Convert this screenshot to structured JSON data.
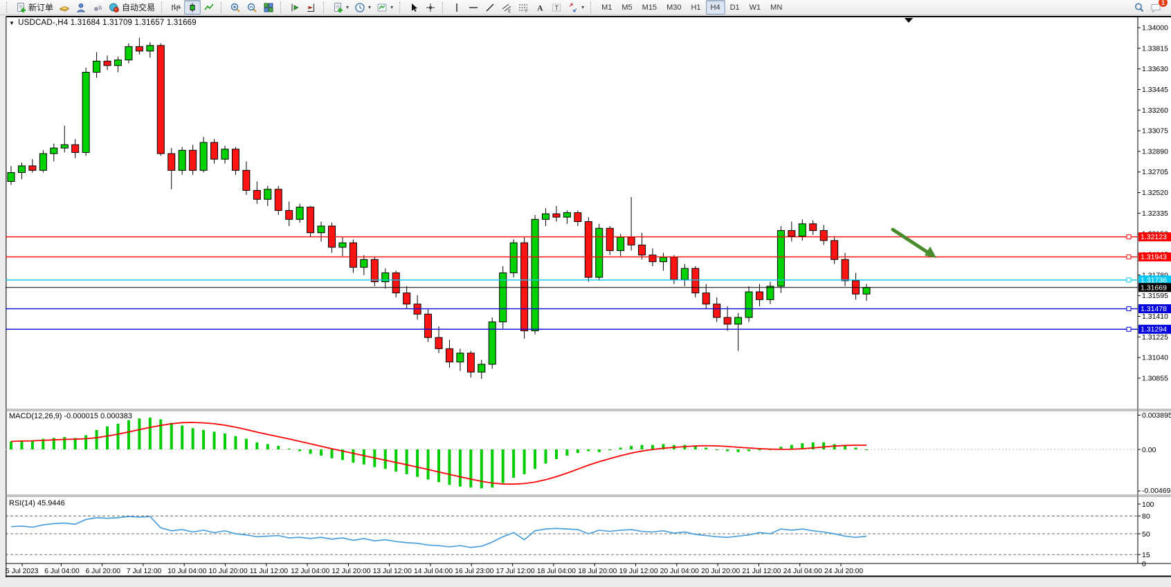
{
  "toolbar": {
    "items": [
      {
        "type": "sep"
      },
      {
        "name": "new-order-button",
        "icon": "doc-plus",
        "label": "新订单"
      },
      {
        "name": "market-watch-button",
        "icon": "book"
      },
      {
        "name": "navigator-button",
        "icon": "person"
      },
      {
        "name": "signals-button",
        "icon": "signal"
      },
      {
        "name": "autotrading-button",
        "icon": "auto",
        "label": "自动交易"
      },
      {
        "type": "sep"
      },
      {
        "name": "bar-chart-button",
        "icon": "bars"
      },
      {
        "name": "candle-chart-button",
        "icon": "candle",
        "pressed": true
      },
      {
        "name": "line-chart-button",
        "icon": "linechart"
      },
      {
        "type": "sep"
      },
      {
        "name": "zoom-in-button",
        "icon": "zoomin"
      },
      {
        "name": "zoom-out-button",
        "icon": "zoomout"
      },
      {
        "name": "tile-windows-button",
        "icon": "tile"
      },
      {
        "type": "sep"
      },
      {
        "name": "chart-shift-button",
        "icon": "shift"
      },
      {
        "name": "auto-scroll-button",
        "icon": "autoscroll"
      },
      {
        "type": "sep"
      },
      {
        "name": "new-chart-button",
        "icon": "doc-plus",
        "dropdown": true
      },
      {
        "name": "profiles-button",
        "icon": "clock",
        "dropdown": true
      },
      {
        "name": "templates-button",
        "icon": "template",
        "dropdown": true
      },
      {
        "type": "sep"
      },
      {
        "name": "cursor-button",
        "icon": "cursor"
      },
      {
        "name": "crosshair-button",
        "icon": "cross"
      },
      {
        "type": "sep"
      },
      {
        "name": "vertical-line-button",
        "icon": "vline"
      },
      {
        "name": "horizontal-line-button",
        "icon": "hline"
      },
      {
        "name": "trendline-button",
        "icon": "trend"
      },
      {
        "name": "equidistant-channel-button",
        "icon": "channel"
      },
      {
        "name": "fibonacci-button",
        "icon": "fibo"
      },
      {
        "name": "text-button",
        "icon": "textA"
      },
      {
        "name": "text-label-button",
        "icon": "textT"
      },
      {
        "name": "arrows-button",
        "icon": "arrows",
        "dropdown": true
      },
      {
        "type": "sep"
      }
    ],
    "timeframes": [
      "M1",
      "M5",
      "M15",
      "M30",
      "H1",
      "H4",
      "D1",
      "W1",
      "MN"
    ],
    "active_timeframe": "H4",
    "chat_badge": "1"
  },
  "chart_data": {
    "type": "candlestick",
    "title_line": "USDCAD-,H4  1.31684 1.31709 1.31657 1.31669",
    "symbol": "USDCAD-",
    "timeframe": "H4",
    "quote": {
      "open": "1.31684",
      "high": "1.31709",
      "low": "1.31657",
      "close": "1.31669"
    },
    "price_axis": {
      "ticks": [
        "1.34000",
        "1.33815",
        "1.33630",
        "1.33445",
        "1.33260",
        "1.33075",
        "1.32890",
        "1.32705",
        "1.32520",
        "1.32335",
        "1.32150",
        "1.31965",
        "1.31780",
        "1.31595",
        "1.31410",
        "1.31225",
        "1.31040",
        "1.30855"
      ]
    },
    "time_axis": [
      "5 Jul 2023",
      "6 Jul 04:00",
      "6 Jul 20:00",
      "7 Jul 12:00",
      "10 Jul 04:00",
      "10 Jul 20:00",
      "11 Jul 12:00",
      "12 Jul 04:00",
      "12 Jul 20:00",
      "13 Jul 12:00",
      "14 Jul 04:00",
      "16 Jul 23:00",
      "17 Jul 12:00",
      "18 Jul 04:00",
      "18 Jul 20:00",
      "19 Jul 12:00",
      "20 Jul 04:00",
      "20 Jul 20:00",
      "21 Jul 12:00",
      "24 Jul 04:00",
      "24 Jul 20:00"
    ],
    "hlines": [
      {
        "price": "1.32123",
        "value": 1.32123,
        "color": "#ff0000",
        "label_bg": "#ff0000",
        "label_fg": "#ffffff"
      },
      {
        "price": "1.31943",
        "value": 1.31943,
        "color": "#ff0000",
        "label_bg": "#ff0000",
        "label_fg": "#ffffff"
      },
      {
        "price": "1.31736",
        "value": 1.31736,
        "color": "#00c8f5",
        "label_bg": "#00c8f5",
        "label_fg": "#ffffff"
      },
      {
        "price": "1.31478",
        "value": 1.31478,
        "color": "#0000dd",
        "label_bg": "#0000dd",
        "label_fg": "#ffffff"
      },
      {
        "price": "1.31294",
        "value": 1.31294,
        "color": "#0000dd",
        "label_bg": "#0000dd",
        "label_fg": "#ffffff"
      }
    ],
    "current_price": {
      "label": "1.31669",
      "value": 1.31669,
      "label_bg": "#000000",
      "label_fg": "#ffffff"
    },
    "candle_up_color": "#00d200",
    "candle_down_color": "#ff1414",
    "candle_outline": "#000000",
    "candles": [
      [
        1.3262,
        1.3276,
        1.3259,
        1.327
      ],
      [
        1.327,
        1.3279,
        1.3264,
        1.3276
      ],
      [
        1.3276,
        1.3282,
        1.327,
        1.3272
      ],
      [
        1.3272,
        1.329,
        1.327,
        1.3287
      ],
      [
        1.3287,
        1.3296,
        1.328,
        1.3292
      ],
      [
        1.3292,
        1.3312,
        1.3288,
        1.3295
      ],
      [
        1.3295,
        1.33,
        1.3283,
        1.3288
      ],
      [
        1.3288,
        1.3364,
        1.3285,
        1.336
      ],
      [
        1.336,
        1.3378,
        1.3355,
        1.337
      ],
      [
        1.337,
        1.3375,
        1.3362,
        1.3366
      ],
      [
        1.3366,
        1.3374,
        1.336,
        1.3371
      ],
      [
        1.3371,
        1.3386,
        1.3368,
        1.3383
      ],
      [
        1.3383,
        1.3391,
        1.3376,
        1.3379
      ],
      [
        1.3379,
        1.3387,
        1.3373,
        1.3384
      ],
      [
        1.3384,
        1.3386,
        1.3285,
        1.3287
      ],
      [
        1.3287,
        1.3292,
        1.3255,
        1.3272
      ],
      [
        1.3272,
        1.3293,
        1.3268,
        1.329
      ],
      [
        1.329,
        1.3295,
        1.3268,
        1.3272
      ],
      [
        1.3272,
        1.3302,
        1.327,
        1.3297
      ],
      [
        1.3297,
        1.33,
        1.3278,
        1.3282
      ],
      [
        1.3282,
        1.3294,
        1.3278,
        1.3291
      ],
      [
        1.3291,
        1.3293,
        1.3268,
        1.3272
      ],
      [
        1.3272,
        1.328,
        1.325,
        1.3254
      ],
      [
        1.3254,
        1.3262,
        1.3242,
        1.3246
      ],
      [
        1.3246,
        1.3258,
        1.324,
        1.3255
      ],
      [
        1.3255,
        1.3258,
        1.3232,
        1.3236
      ],
      [
        1.3236,
        1.3244,
        1.3222,
        1.3228
      ],
      [
        1.3228,
        1.3242,
        1.3225,
        1.3239
      ],
      [
        1.3239,
        1.324,
        1.3212,
        1.3216
      ],
      [
        1.3216,
        1.3226,
        1.3208,
        1.3222
      ],
      [
        1.3222,
        1.3225,
        1.3198,
        1.3203
      ],
      [
        1.3203,
        1.3212,
        1.3195,
        1.3207
      ],
      [
        1.3207,
        1.321,
        1.318,
        1.3185
      ],
      [
        1.3185,
        1.3196,
        1.3178,
        1.3192
      ],
      [
        1.3192,
        1.3194,
        1.3168,
        1.3172
      ],
      [
        1.3172,
        1.3184,
        1.3166,
        1.318
      ],
      [
        1.318,
        1.3182,
        1.3158,
        1.3162
      ],
      [
        1.3162,
        1.3168,
        1.3148,
        1.3152
      ],
      [
        1.3152,
        1.316,
        1.3138,
        1.3143
      ],
      [
        1.3143,
        1.3148,
        1.3118,
        1.3122
      ],
      [
        1.3122,
        1.3132,
        1.3108,
        1.3112
      ],
      [
        1.3112,
        1.312,
        1.3095,
        1.31
      ],
      [
        1.31,
        1.3112,
        1.3092,
        1.3108
      ],
      [
        1.3108,
        1.311,
        1.3086,
        1.3091
      ],
      [
        1.3091,
        1.3102,
        1.3085,
        1.3098
      ],
      [
        1.3098,
        1.314,
        1.3094,
        1.3136
      ],
      [
        1.3136,
        1.3186,
        1.313,
        1.318
      ],
      [
        1.318,
        1.321,
        1.3176,
        1.3207
      ],
      [
        1.3207,
        1.3212,
        1.3121,
        1.3128
      ],
      [
        1.3128,
        1.3232,
        1.3125,
        1.3228
      ],
      [
        1.3228,
        1.3238,
        1.3222,
        1.3233
      ],
      [
        1.3233,
        1.324,
        1.3226,
        1.323
      ],
      [
        1.323,
        1.3236,
        1.3224,
        1.3234
      ],
      [
        1.3234,
        1.3236,
        1.3222,
        1.3226
      ],
      [
        1.3226,
        1.323,
        1.3172,
        1.3176
      ],
      [
        1.3176,
        1.3224,
        1.3173,
        1.322
      ],
      [
        1.322,
        1.3222,
        1.3196,
        1.32
      ],
      [
        1.32,
        1.3215,
        1.3195,
        1.3212
      ],
      [
        1.3212,
        1.3248,
        1.32,
        1.3205
      ],
      [
        1.3205,
        1.3216,
        1.3192,
        1.3196
      ],
      [
        1.3196,
        1.3202,
        1.3186,
        1.319
      ],
      [
        1.319,
        1.3198,
        1.3182,
        1.3194
      ],
      [
        1.3194,
        1.3196,
        1.317,
        1.3174
      ],
      [
        1.3174,
        1.3188,
        1.3168,
        1.3184
      ],
      [
        1.3184,
        1.3186,
        1.3158,
        1.3162
      ],
      [
        1.3162,
        1.317,
        1.3148,
        1.3152
      ],
      [
        1.3152,
        1.3158,
        1.3136,
        1.314
      ],
      [
        1.314,
        1.315,
        1.3128,
        1.3134
      ],
      [
        1.3134,
        1.3144,
        1.311,
        1.314
      ],
      [
        1.314,
        1.3168,
        1.3136,
        1.3163
      ],
      [
        1.3163,
        1.317,
        1.315,
        1.3156
      ],
      [
        1.3156,
        1.3172,
        1.3152,
        1.3168
      ],
      [
        1.3168,
        1.3222,
        1.3162,
        1.3218
      ],
      [
        1.3218,
        1.3226,
        1.3208,
        1.3213
      ],
      [
        1.3213,
        1.3228,
        1.3209,
        1.3224
      ],
      [
        1.3224,
        1.3227,
        1.3214,
        1.3218
      ],
      [
        1.3218,
        1.3223,
        1.3205,
        1.3209
      ],
      [
        1.3209,
        1.3213,
        1.3188,
        1.3192
      ],
      [
        1.3192,
        1.3198,
        1.3168,
        1.3173
      ],
      [
        1.3173,
        1.318,
        1.3156,
        1.3161
      ],
      [
        1.3161,
        1.317,
        1.3155,
        1.31669
      ]
    ],
    "macd": {
      "label": "MACD(12,26,9) -0.000015 0.000383",
      "name": "MACD",
      "params": "12,26,9",
      "macd_value": "-0.000015",
      "signal_value": "0.000383",
      "scale_labels": [
        "0.003895",
        "0.00",
        "-0.004699"
      ],
      "histogram_color": "#00cc00",
      "signal_color": "#ff0000",
      "histogram": [
        0.0009,
        0.001,
        0.001,
        0.0012,
        0.0013,
        0.0014,
        0.0013,
        0.0016,
        0.0022,
        0.0026,
        0.0029,
        0.0033,
        0.0035,
        0.0036,
        0.0034,
        0.003,
        0.0027,
        0.0024,
        0.0022,
        0.002,
        0.0018,
        0.0015,
        0.0012,
        0.0008,
        0.0006,
        0.0004,
        0.0001,
        -0.0002,
        -0.0005,
        -0.0007,
        -0.001,
        -0.0012,
        -0.0015,
        -0.0017,
        -0.002,
        -0.0022,
        -0.0025,
        -0.0028,
        -0.0031,
        -0.0034,
        -0.0037,
        -0.004,
        -0.0042,
        -0.0043,
        -0.0044,
        -0.0043,
        -0.0038,
        -0.0032,
        -0.0028,
        -0.0022,
        -0.0016,
        -0.0011,
        -0.0007,
        -0.0004,
        -0.0002,
        -0.0003,
        -0.0001,
        0.0002,
        0.0004,
        0.0005,
        0.0005,
        0.0006,
        0.0005,
        0.0005,
        0.0004,
        0.0002,
        0.0,
        -0.0002,
        -0.0003,
        -0.0002,
        -0.0001,
        0.0,
        0.0003,
        0.0005,
        0.0007,
        0.0008,
        0.0008,
        0.0006,
        0.0004,
        0.0002,
        0.0
      ]
    },
    "rsi": {
      "label": "RSI(14) 45.9446",
      "name": "RSI",
      "params": "14",
      "value": "45.9446",
      "scale_labels": [
        "100",
        "80",
        "50",
        "15",
        "0"
      ],
      "dashed_levels": [
        80,
        50,
        15
      ],
      "line_color": "#4a9ede",
      "values": [
        62,
        63,
        61,
        65,
        67,
        68,
        66,
        74,
        77,
        76,
        77,
        79,
        78,
        79,
        60,
        55,
        57,
        53,
        56,
        52,
        55,
        50,
        48,
        45,
        46,
        47,
        43,
        44,
        42,
        44,
        41,
        43,
        39,
        42,
        38,
        40,
        37,
        35,
        34,
        31,
        30,
        28,
        30,
        27,
        29,
        36,
        45,
        52,
        40,
        55,
        58,
        59,
        58,
        57,
        50,
        56,
        54,
        56,
        57,
        54,
        53,
        55,
        51,
        53,
        49,
        47,
        45,
        44,
        46,
        48,
        52,
        50,
        58,
        56,
        58,
        55,
        53,
        50,
        46,
        44,
        45.94
      ]
    },
    "annotations": {
      "arrow": {
        "shape": "down-right-arrow",
        "color": "#4a8b2e"
      }
    }
  }
}
